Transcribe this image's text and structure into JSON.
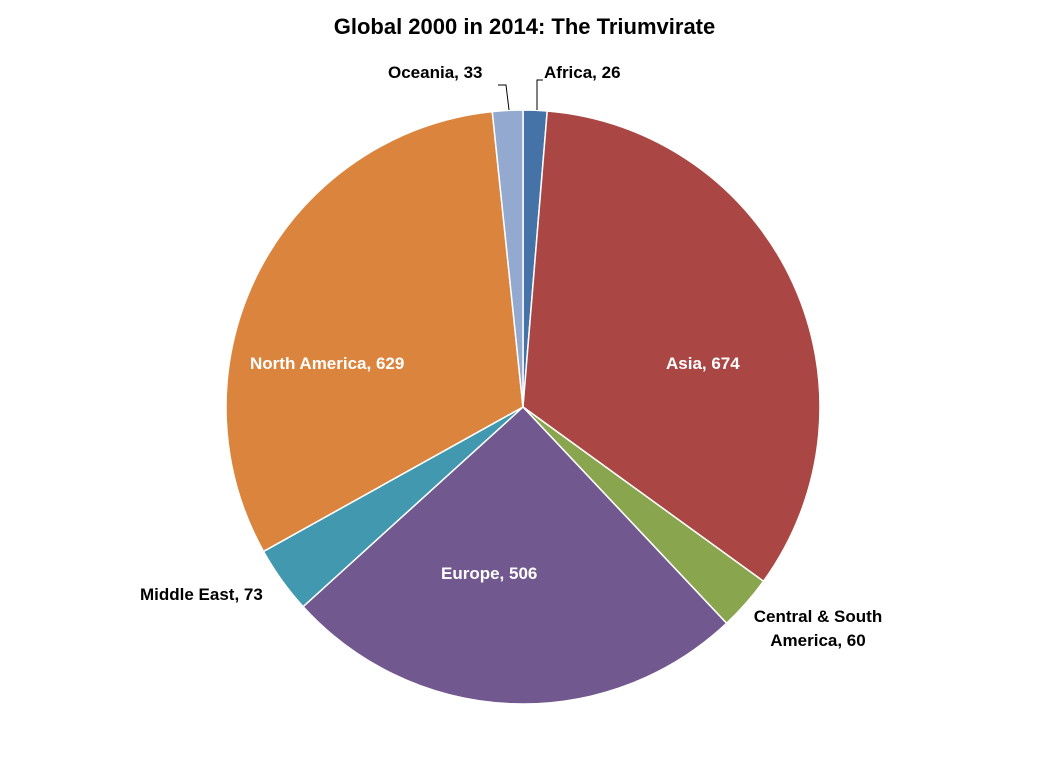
{
  "chart_data": {
    "type": "pie",
    "title": "Global 2000 in 2014: The Triumvirate",
    "slices": [
      {
        "label": "Africa",
        "value": 26,
        "color": "#4572A7",
        "text": "Africa, 26"
      },
      {
        "label": "Asia",
        "value": 674,
        "color": "#AA4643",
        "text": "Asia, 674"
      },
      {
        "label": "Central & South America",
        "value": 60,
        "color": "#89A54E",
        "text_line1": "Central & South",
        "text_line2": "America, 60"
      },
      {
        "label": "Europe",
        "value": 506,
        "color": "#71588F",
        "text": "Europe, 506"
      },
      {
        "label": "Middle East",
        "value": 73,
        "color": "#4198AF",
        "text": "Middle East, 73"
      },
      {
        "label": "North America",
        "value": 629,
        "color": "#DB843D",
        "text": "North America, 629"
      },
      {
        "label": "Oceania",
        "value": 33,
        "color": "#93A9CF",
        "text": "Oceania, 33"
      }
    ],
    "legend": "none"
  }
}
